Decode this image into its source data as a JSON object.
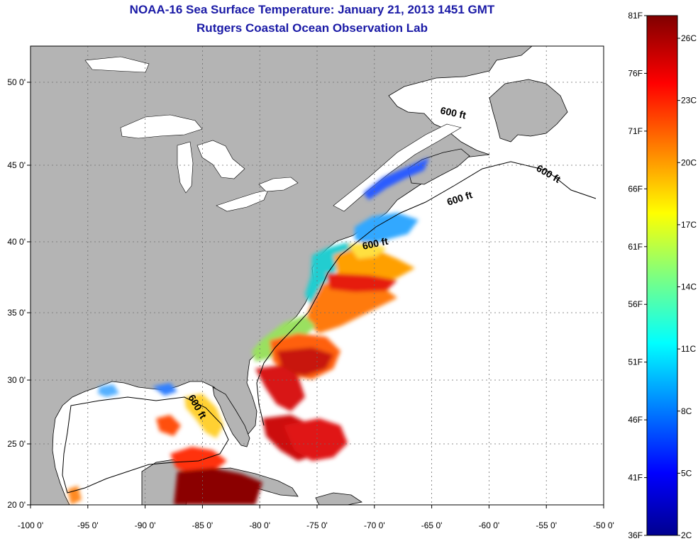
{
  "title": "NOAA-16 Sea Surface Temperature:  January 21, 2013 1451 GMT",
  "subtitle": "Rutgers Coastal Ocean Observation Lab",
  "map": {
    "x_tick_labels": [
      "-100 0'",
      "-95 0'",
      "-90 0'",
      "-85 0'",
      "-80 0'",
      "-75 0'",
      "-70 0'",
      "-65 0'",
      "-60 0'",
      "-55 0'",
      "-50 0'"
    ],
    "y_tick_labels": [
      "50 0'",
      "45 0'",
      "40 0'",
      "35 0'",
      "30 0'",
      "25 0'",
      "20 0'"
    ],
    "depth_contour_label": "600 ft",
    "colors": {
      "land": "#b4b4b4",
      "ocean_no_data": "#ffffff",
      "title": "#1a1aa6"
    }
  },
  "colorbar": {
    "fahrenheit_labels": [
      "81F",
      "76F",
      "71F",
      "66F",
      "61F",
      "56F",
      "51F",
      "46F",
      "41F",
      "36F"
    ],
    "celsius_labels": [
      "26C",
      "23C",
      "20C",
      "17C",
      "14C",
      "11C",
      "8C",
      "5C",
      "2C"
    ],
    "colormap": "jet"
  }
}
